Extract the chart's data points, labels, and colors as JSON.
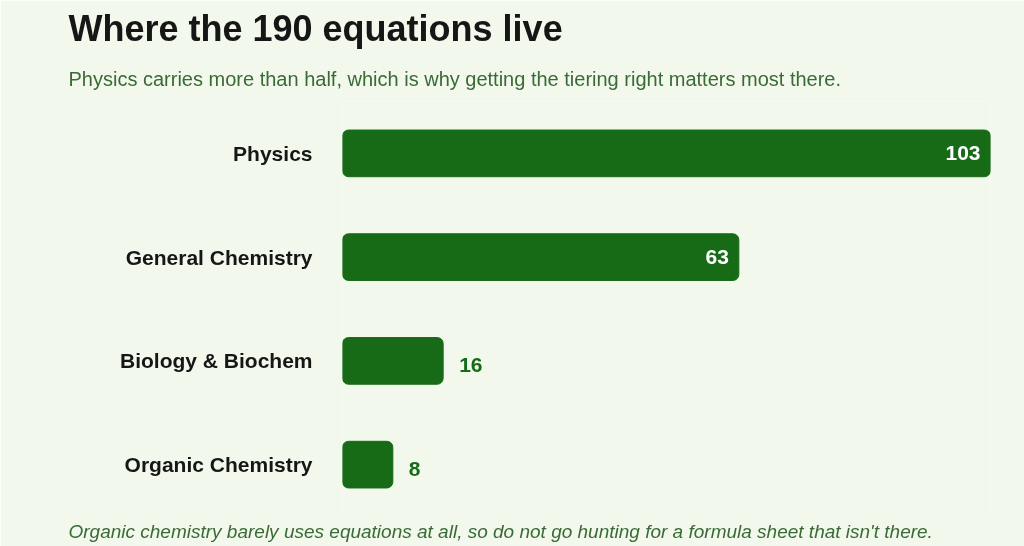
{
  "chart_data": {
    "type": "bar",
    "orientation": "horizontal",
    "title": "Where the 190 equations live",
    "subtitle": "Physics carries more than half, which is why getting the tiering right matters most there.",
    "categories": [
      "Physics",
      "General Chemistry",
      "Biology & Biochem",
      "Organic Chemistry"
    ],
    "values": [
      103,
      63,
      16,
      8
    ],
    "color": "#176b17",
    "data_labels": true,
    "annotations": [
      "Organic chemistry barely uses equations at all, so do not go hunting for a formula sheet that isn't there."
    ]
  }
}
